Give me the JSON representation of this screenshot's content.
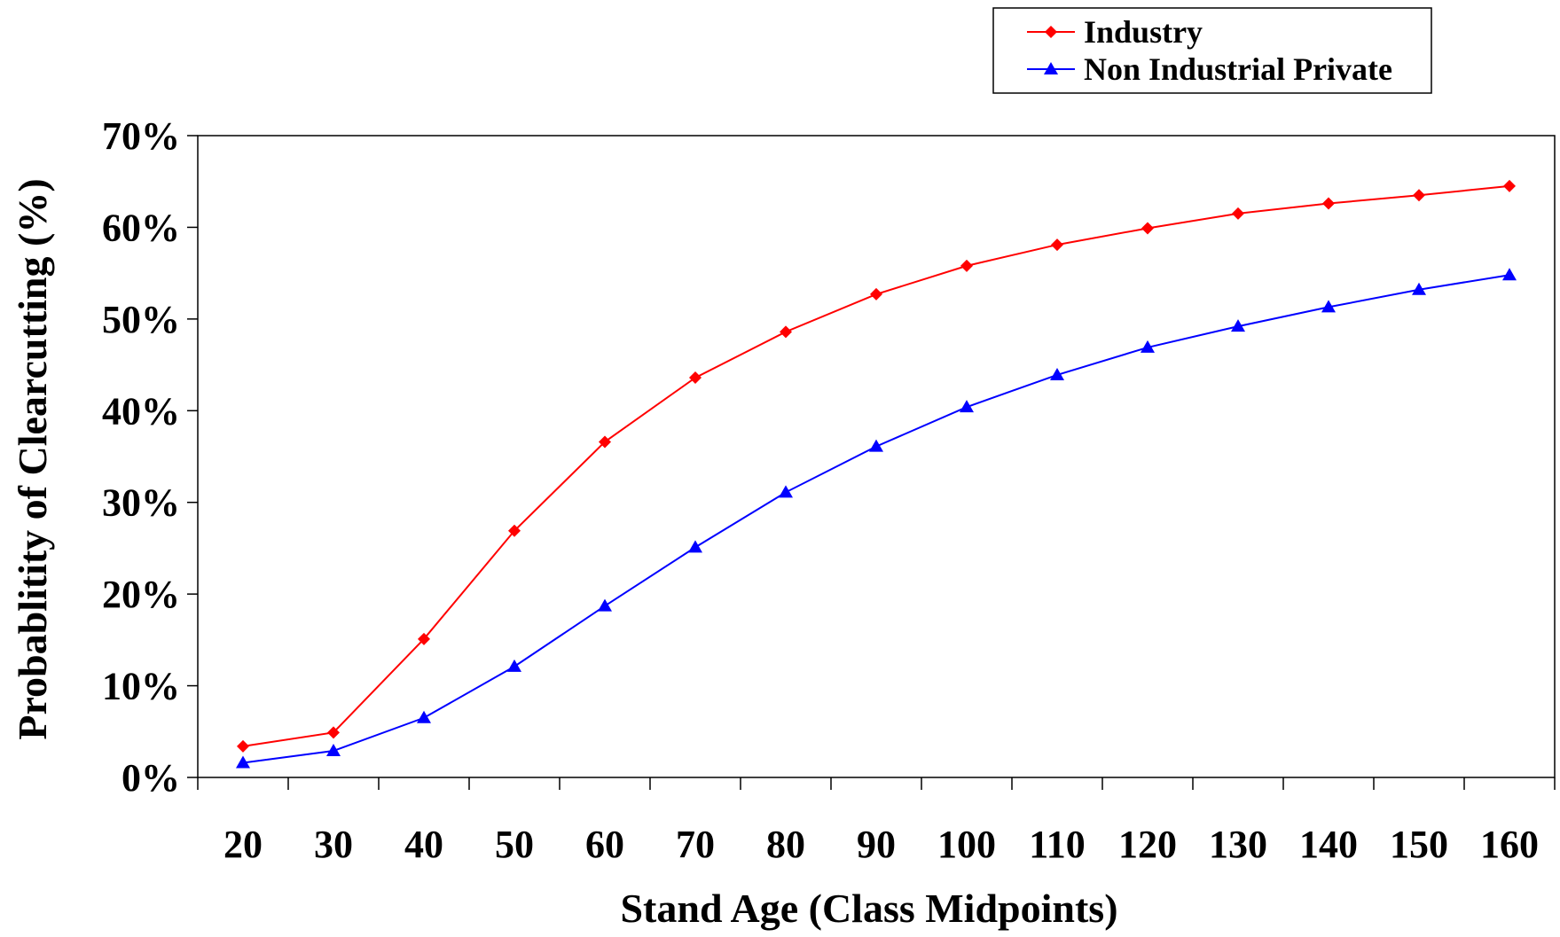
{
  "chart_data": {
    "type": "line",
    "xlabel": "Stand Age (Class Midpoints)",
    "ylabel": "Probablitity of Clearcutting (%)",
    "categories": [
      "20",
      "30",
      "40",
      "50",
      "60",
      "70",
      "80",
      "90",
      "100",
      "110",
      "120",
      "130",
      "140",
      "150",
      "160"
    ],
    "ylim": [
      0,
      0.7
    ],
    "yticks": [
      "0%",
      "10%",
      "20%",
      "30%",
      "40%",
      "50%",
      "60%",
      "70%"
    ],
    "grid": false,
    "legend_position": "top-right",
    "series": [
      {
        "name": "Industry",
        "color": "#ff0000",
        "marker": "diamond",
        "values": [
          0.034,
          0.049,
          0.151,
          0.269,
          0.366,
          0.436,
          0.486,
          0.527,
          0.558,
          0.581,
          0.599,
          0.615,
          0.626,
          0.635,
          0.645
        ]
      },
      {
        "name": "Non Industrial Private",
        "color": "#0000ff",
        "marker": "triangle",
        "values": [
          0.016,
          0.029,
          0.065,
          0.121,
          0.187,
          0.251,
          0.311,
          0.361,
          0.404,
          0.439,
          0.469,
          0.492,
          0.513,
          0.532,
          0.548
        ]
      }
    ]
  }
}
